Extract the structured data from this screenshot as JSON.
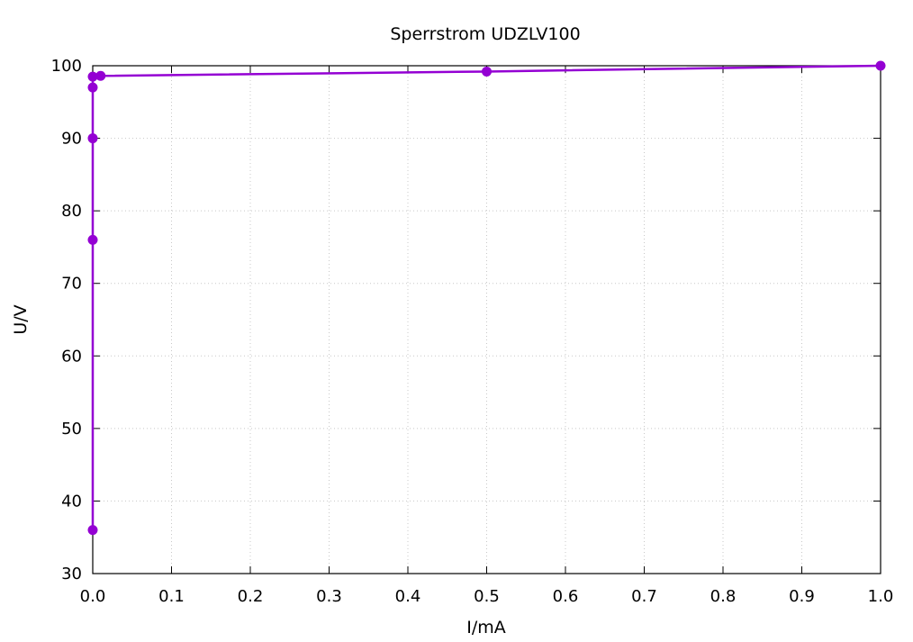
{
  "chart_data": {
    "type": "line",
    "title": "Sperrstrom UDZLV100",
    "xlabel": "I/mA",
    "ylabel": "U/V",
    "xlim": [
      0,
      1
    ],
    "ylim": [
      30,
      100
    ],
    "grid": true,
    "x_ticks": [
      "0.0",
      "0.1",
      "0.2",
      "0.3",
      "0.4",
      "0.5",
      "0.6",
      "0.7",
      "0.8",
      "0.9",
      "1.0"
    ],
    "y_ticks": [
      "30",
      "40",
      "50",
      "60",
      "70",
      "80",
      "90",
      "100"
    ],
    "series": [
      {
        "color": "#9400d3",
        "marker": "circle",
        "points": [
          {
            "x": 0.0,
            "y": 36
          },
          {
            "x": 0.0,
            "y": 76
          },
          {
            "x": 0.0,
            "y": 90
          },
          {
            "x": 0.0,
            "y": 97
          },
          {
            "x": 0.0,
            "y": 98.5
          },
          {
            "x": 0.01,
            "y": 98.6
          },
          {
            "x": 0.5,
            "y": 99.2
          },
          {
            "x": 1.0,
            "y": 100
          }
        ]
      }
    ]
  }
}
